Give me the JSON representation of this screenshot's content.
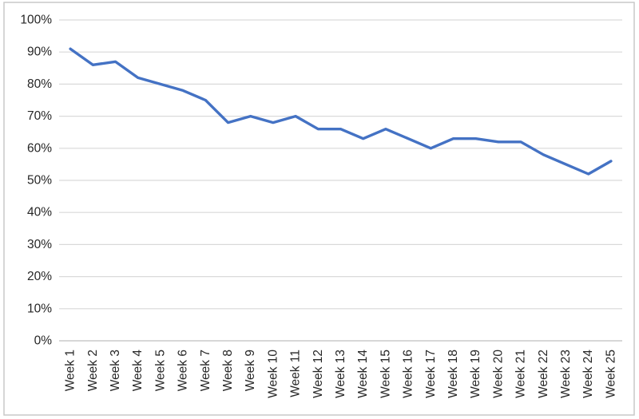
{
  "chart_data": {
    "type": "line",
    "title": "",
    "xlabel": "",
    "ylabel": "",
    "categories": [
      "Week 1",
      "Week 2",
      "Week 3",
      "Week 4",
      "Week 5",
      "Week 6",
      "Week 7",
      "Week 8",
      "Week 9",
      "Week 10",
      "Week 11",
      "Week 12",
      "Week 13",
      "Week 14",
      "Week 15",
      "Week 16",
      "Week 17",
      "Week 18",
      "Week 19",
      "Week 20",
      "Week 21",
      "Week 22",
      "Week 23",
      "Week 24",
      "Week 25"
    ],
    "series": [
      {
        "name": "",
        "values": [
          91,
          86,
          87,
          82,
          80,
          78,
          75,
          68,
          70,
          68,
          70,
          66,
          66,
          63,
          66,
          63,
          60,
          63,
          63,
          62,
          62,
          58,
          55,
          52,
          56
        ]
      }
    ],
    "ylim": [
      0,
      100
    ],
    "ytick_step": 10,
    "ytick_labels": [
      "0%",
      "10%",
      "20%",
      "30%",
      "40%",
      "50%",
      "60%",
      "70%",
      "80%",
      "90%",
      "100%"
    ],
    "grid": "horizontal",
    "legend_position": "none",
    "x_label_rotation_deg": 90
  },
  "colors": {
    "line": "#4472C4",
    "gridline": "#D9D9D9",
    "axis_line": "#BFBFBF",
    "chart_border": "#C9C9C9",
    "tick_label": "#262626",
    "background": "#FFFFFF"
  }
}
